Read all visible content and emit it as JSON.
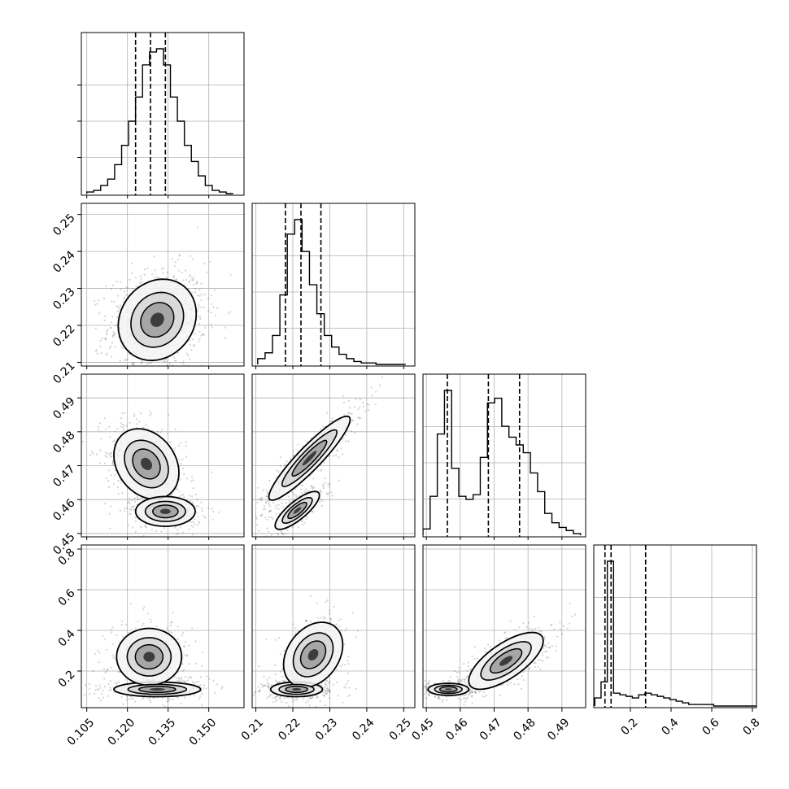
{
  "chart_data": {
    "type": "scatter",
    "variant": "corner-plot",
    "parameters": 4,
    "colors": {
      "ink": "#000000",
      "points": "#555555",
      "grid": "#b0b0b0",
      "fill": "#8a8a8a"
    },
    "grid": true,
    "axis_ranges": [
      [
        0.103,
        0.163
      ],
      [
        0.209,
        0.253
      ],
      [
        0.449,
        0.497
      ],
      [
        0.02,
        0.82
      ]
    ],
    "x_ticks": [
      [
        "0.105",
        "0.120",
        "0.135",
        "0.150"
      ],
      [
        "0.21",
        "0.22",
        "0.23",
        "0.24",
        "0.25"
      ],
      [
        "0.45",
        "0.46",
        "0.47",
        "0.48",
        "0.49"
      ],
      [
        "0.2",
        "0.4",
        "0.6",
        "0.8"
      ]
    ],
    "y_ticks": [
      null,
      [
        "0.21",
        "0.22",
        "0.23",
        "0.24",
        "0.25"
      ],
      [
        "0.45",
        "0.46",
        "0.47",
        "0.48",
        "0.49"
      ],
      [
        "0.2",
        "0.4",
        "0.6",
        "0.8"
      ]
    ],
    "quantiles": [
      [
        0.123,
        0.1285,
        0.134
      ],
      [
        0.218,
        0.2222,
        0.2276
      ],
      [
        0.4562,
        0.4683,
        0.4775
      ],
      [
        0.075,
        0.105,
        0.275
      ]
    ],
    "histograms": [
      {
        "edges_range": [
          0.105,
          0.159
        ],
        "counts": [
          1,
          2,
          5,
          9,
          18,
          30,
          45,
          60,
          80,
          88,
          90,
          80,
          60,
          45,
          30,
          20,
          11,
          5,
          2,
          1,
          0
        ]
      },
      {
        "edges_range": [
          0.2105,
          0.2505
        ],
        "counts": [
          4,
          8,
          20,
          48,
          90,
          100,
          78,
          55,
          35,
          20,
          12,
          7,
          4,
          2,
          1,
          1,
          0,
          0,
          0,
          0
        ]
      },
      {
        "edges_range": [
          0.449,
          0.4955
        ],
        "counts": [
          4,
          25,
          65,
          93,
          43,
          25,
          23,
          26,
          50,
          85,
          88,
          70,
          63,
          58,
          53,
          40,
          28,
          14,
          8,
          5,
          3,
          1
        ]
      },
      {
        "edges_range": [
          0.025,
          0.825
        ],
        "counts": [
          5,
          15,
          90,
          8,
          7,
          6,
          5,
          7,
          8,
          7,
          6,
          5,
          4,
          3,
          2,
          1,
          1,
          1,
          1,
          0,
          0,
          0,
          0,
          0,
          0,
          0
        ]
      }
    ],
    "pair_blobs": [
      {
        "row": 1,
        "col": 0,
        "blobs": [
          {
            "mx": 0.131,
            "my": 0.2215,
            "sx": 0.0072,
            "sy": 0.0055,
            "rho": 0.15,
            "weight": 1
          }
        ]
      },
      {
        "row": 2,
        "col": 0,
        "blobs": [
          {
            "mx": 0.127,
            "my": 0.4705,
            "sx": 0.006,
            "sy": 0.0052,
            "rho": -0.25,
            "weight": 0.62
          },
          {
            "mx": 0.134,
            "my": 0.4565,
            "sx": 0.0055,
            "sy": 0.0022,
            "rho": 0.0,
            "weight": 0.38
          }
        ]
      },
      {
        "row": 2,
        "col": 1,
        "blobs": [
          {
            "mx": 0.2245,
            "my": 0.4722,
            "sx": 0.0055,
            "sy": 0.0062,
            "rho": 0.92,
            "weight": 0.62
          },
          {
            "mx": 0.2212,
            "my": 0.4568,
            "sx": 0.003,
            "sy": 0.0028,
            "rho": 0.8,
            "weight": 0.38
          }
        ]
      },
      {
        "row": 3,
        "col": 0,
        "blobs": [
          {
            "mx": 0.131,
            "my": 0.11,
            "sx": 0.008,
            "sy": 0.018,
            "rho": 0.0,
            "weight": 0.55
          },
          {
            "mx": 0.128,
            "my": 0.27,
            "sx": 0.006,
            "sy": 0.07,
            "rho": 0.0,
            "weight": 0.45
          }
        ]
      },
      {
        "row": 3,
        "col": 1,
        "blobs": [
          {
            "mx": 0.221,
            "my": 0.11,
            "sx": 0.0035,
            "sy": 0.018,
            "rho": 0.0,
            "weight": 0.55
          },
          {
            "mx": 0.2255,
            "my": 0.28,
            "sx": 0.004,
            "sy": 0.08,
            "rho": 0.3,
            "weight": 0.45
          }
        ]
      },
      {
        "row": 3,
        "col": 2,
        "blobs": [
          {
            "mx": 0.4565,
            "my": 0.11,
            "sx": 0.003,
            "sy": 0.015,
            "rho": 0.0,
            "weight": 0.45
          },
          {
            "mx": 0.4735,
            "my": 0.25,
            "sx": 0.0055,
            "sy": 0.07,
            "rho": 0.7,
            "weight": 0.55
          }
        ]
      }
    ]
  }
}
